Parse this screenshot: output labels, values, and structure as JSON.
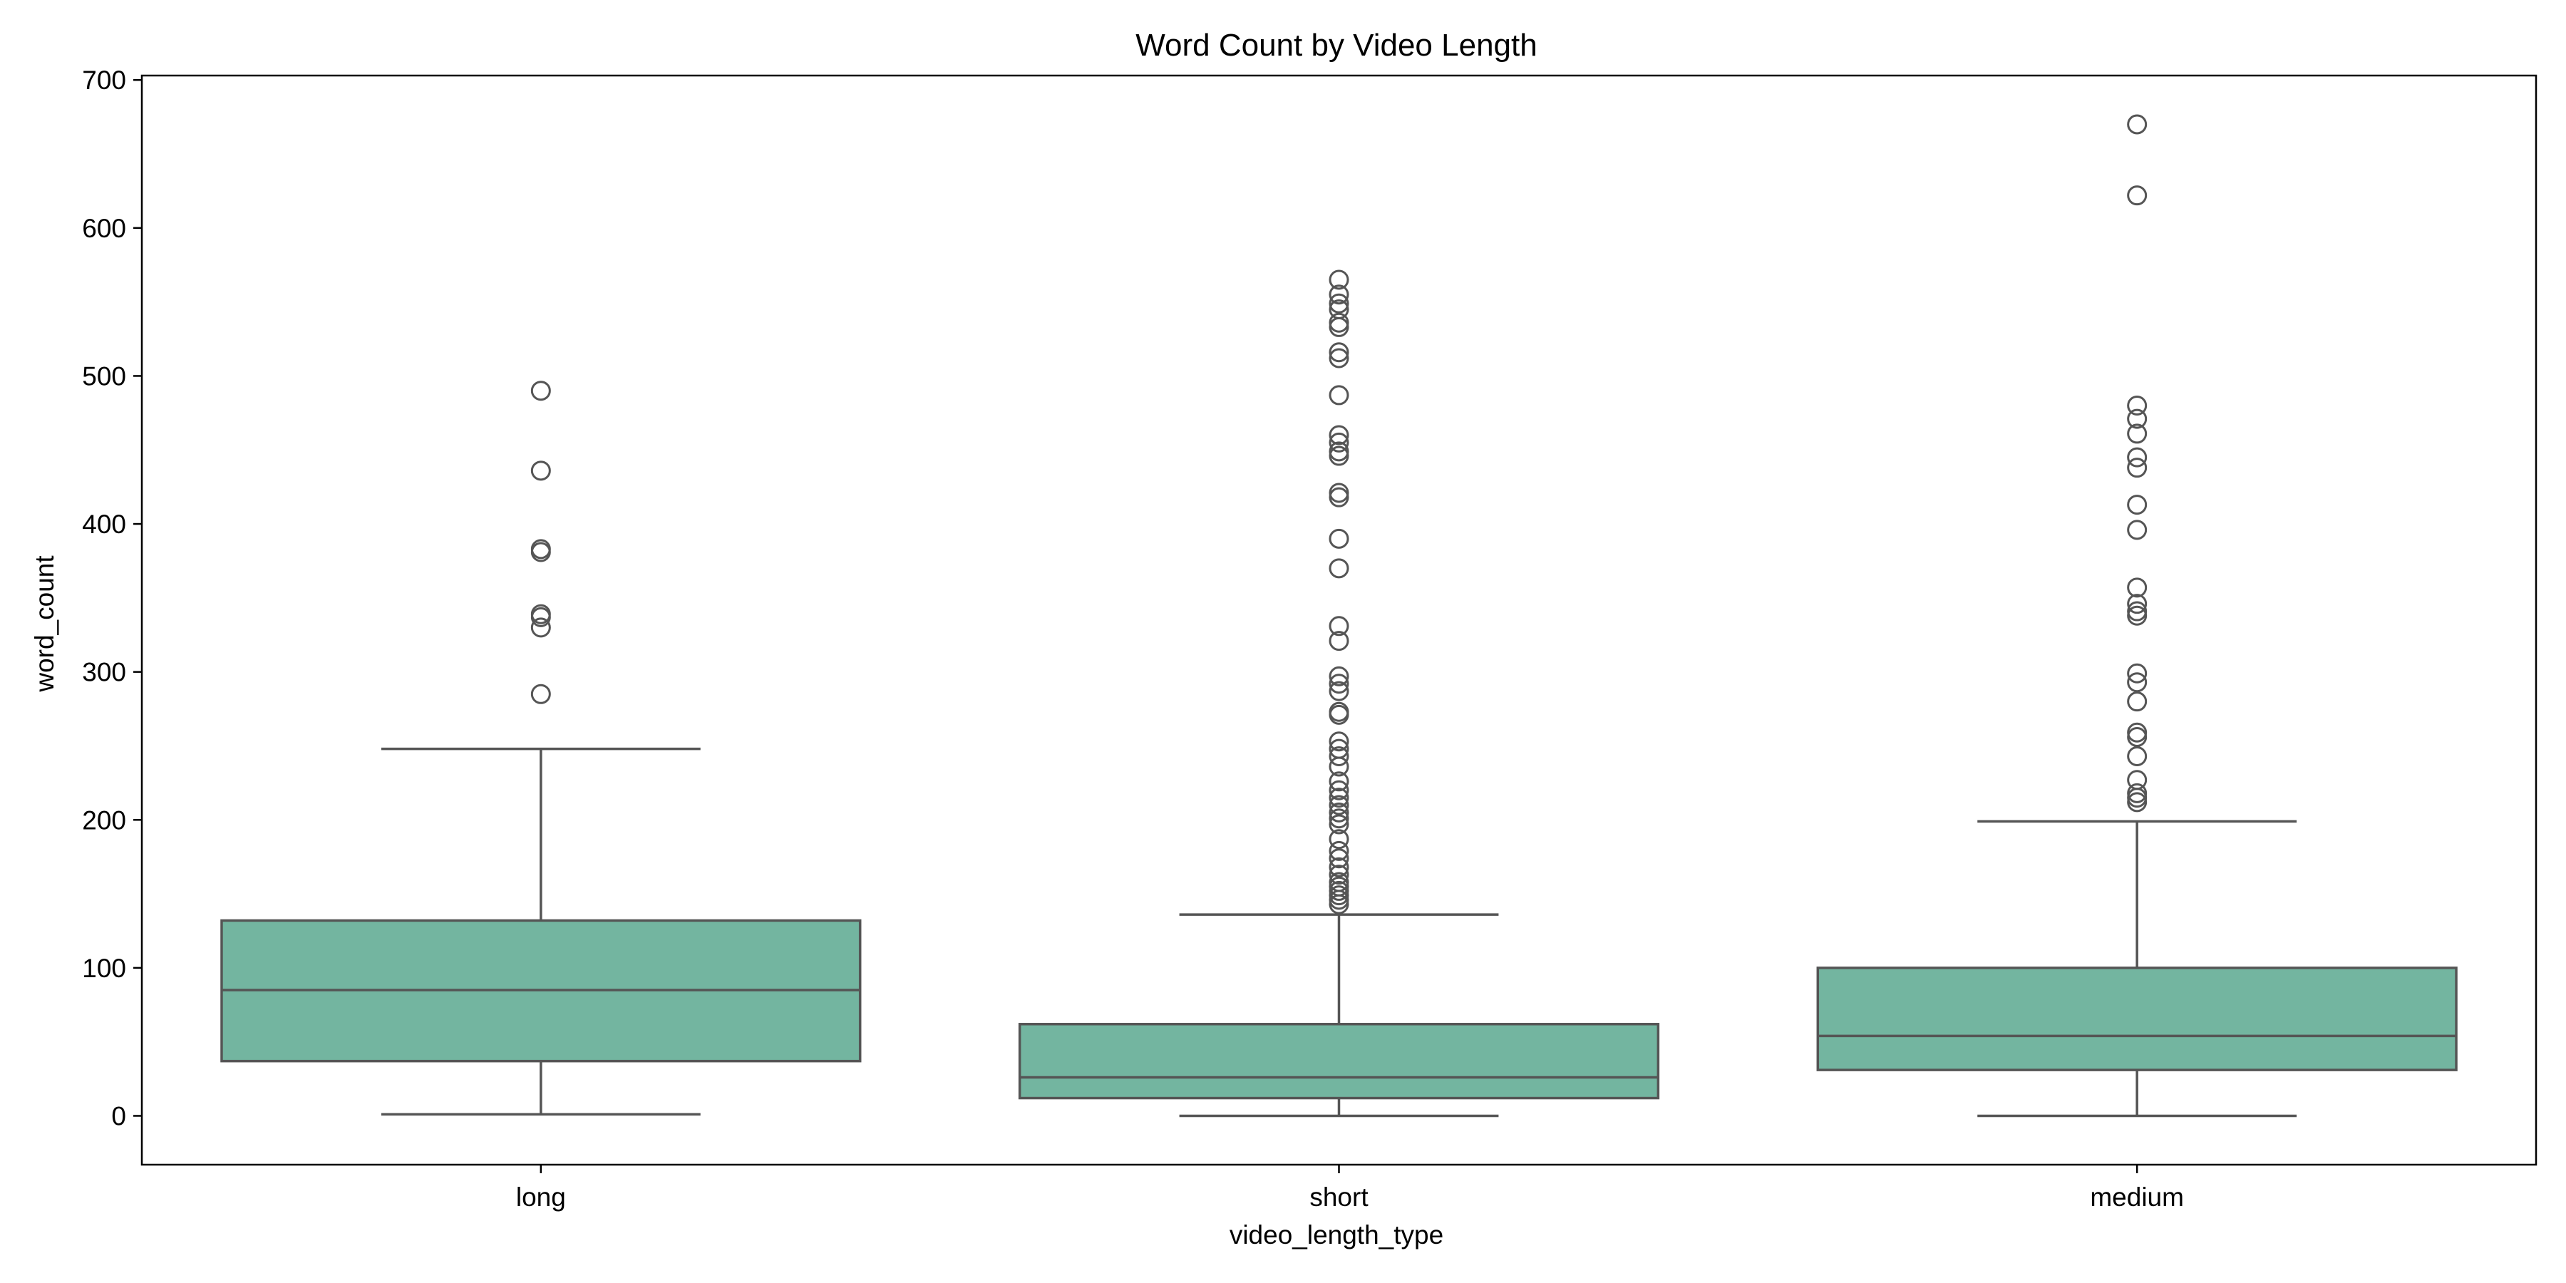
{
  "chart_data": {
    "type": "box",
    "title": "Word Count by Video Length",
    "xlabel": "video_length_type",
    "ylabel": "word_count",
    "ylim": [
      -33,
      703
    ],
    "yticks": [
      0,
      100,
      200,
      300,
      400,
      500,
      600,
      700
    ],
    "grid": false,
    "box_color": "#73b5a0",
    "line_color": "#555555",
    "categories": [
      "long",
      "short",
      "medium"
    ],
    "boxes": [
      {
        "category": "long",
        "whisker_low": 1,
        "q1": 37,
        "median": 85,
        "q3": 132,
        "whisker_high": 248,
        "outliers": [
          490,
          436,
          383,
          381,
          339,
          337,
          330,
          285
        ]
      },
      {
        "category": "short",
        "whisker_low": 0,
        "q1": 12,
        "median": 26,
        "q3": 62,
        "whisker_high": 136,
        "outliers": [
          565,
          555,
          549,
          545,
          536,
          533,
          516,
          512,
          487,
          460,
          455,
          449,
          446,
          421,
          418,
          390,
          370,
          331,
          321,
          297,
          292,
          287,
          273,
          271,
          253,
          248,
          243,
          236,
          226,
          220,
          215,
          210,
          205,
          201,
          197,
          187,
          179,
          174,
          168,
          163,
          158,
          155,
          152,
          149,
          146,
          143
        ]
      },
      {
        "category": "medium",
        "whisker_low": 0,
        "q1": 31,
        "median": 54,
        "q3": 100,
        "whisker_high": 199,
        "outliers": [
          670,
          622,
          480,
          471,
          461,
          445,
          438,
          413,
          396,
          357,
          346,
          341,
          338,
          299,
          293,
          280,
          259,
          256,
          243,
          227,
          218,
          215,
          212
        ]
      }
    ]
  }
}
